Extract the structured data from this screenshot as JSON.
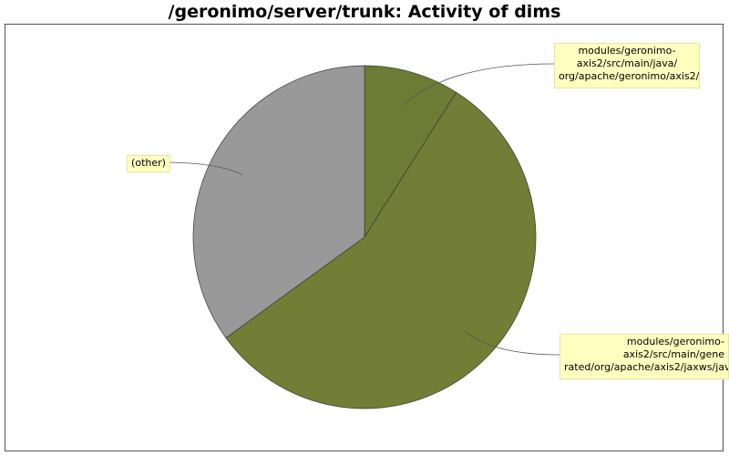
{
  "chart_data": {
    "type": "pie",
    "title": "/geronimo/server/trunk: Activity of dims",
    "slices": [
      {
        "label": "modules/geronimo-\naxis2/src/main/java/\norg/apache/geronimo/axis2/",
        "value": 9,
        "color": "#6e7b34"
      },
      {
        "label": "modules/geronimo-\naxis2/src/main/gene\nrated/org/apache/axis2/jaxws/jav",
        "value": 56,
        "color": "#727d35"
      },
      {
        "label": "(other)",
        "value": 35,
        "color": "#999999"
      }
    ]
  }
}
